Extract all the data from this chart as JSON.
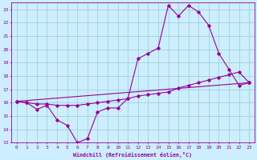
{
  "xlabel": "Windchill (Refroidissement éolien,°C)",
  "background_color": "#cceeff",
  "line_color": "#990099",
  "grid_color": "#99cccc",
  "xlim": [
    -0.5,
    23.5
  ],
  "ylim": [
    13,
    23.5
  ],
  "xticks": [
    0,
    1,
    2,
    3,
    4,
    5,
    6,
    7,
    8,
    9,
    10,
    11,
    12,
    13,
    14,
    15,
    16,
    17,
    18,
    19,
    20,
    21,
    22,
    23
  ],
  "yticks": [
    13,
    14,
    15,
    16,
    17,
    18,
    19,
    20,
    21,
    22,
    23
  ],
  "line1_x": [
    0,
    1,
    2,
    3,
    4,
    5,
    6,
    7,
    8,
    9,
    10,
    11,
    12,
    13,
    14,
    15,
    16,
    17,
    18,
    19,
    20,
    21,
    22,
    23
  ],
  "line1_y": [
    16.1,
    16.0,
    15.5,
    15.8,
    14.7,
    14.3,
    13.0,
    13.3,
    15.3,
    15.6,
    15.6,
    16.3,
    19.3,
    19.7,
    20.1,
    23.3,
    22.5,
    23.3,
    22.8,
    21.8,
    19.7,
    18.5,
    17.3,
    17.5
  ],
  "line2_x": [
    0,
    1,
    2,
    3,
    4,
    5,
    6,
    7,
    8,
    9,
    10,
    11,
    12,
    13,
    14,
    15,
    16,
    17,
    18,
    19,
    20,
    21,
    22,
    23
  ],
  "line2_y": [
    16.1,
    16.0,
    15.9,
    15.9,
    15.8,
    15.8,
    15.8,
    15.9,
    16.0,
    16.1,
    16.2,
    16.3,
    16.5,
    16.6,
    16.7,
    16.8,
    17.1,
    17.3,
    17.5,
    17.7,
    17.9,
    18.1,
    18.3,
    17.5
  ],
  "line3_x": [
    0,
    23
  ],
  "line3_y": [
    16.1,
    17.5
  ]
}
